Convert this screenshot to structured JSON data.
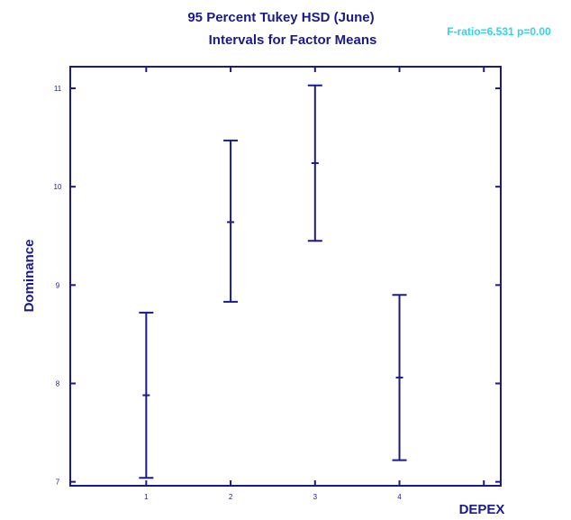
{
  "chart_data": {
    "type": "error-bar",
    "title": "95 Percent Tukey HSD (June)",
    "subtitle": "Intervals for Factor Means",
    "stat_text": "F-ratio=6.531 p=0.00",
    "xlabel": "DEPEX",
    "ylabel": "Dominance",
    "categories": [
      "1",
      "2",
      "3",
      "4"
    ],
    "ytick_labels": [
      "7",
      "8",
      "9",
      "10",
      "11"
    ],
    "ylim": [
      6.96,
      11.22
    ],
    "xlim": [
      0.1,
      5.2
    ],
    "means": [
      7.88,
      9.64,
      10.24,
      8.06
    ],
    "lower": [
      7.04,
      8.83,
      9.45,
      7.22
    ],
    "upper": [
      8.72,
      10.47,
      11.03,
      8.9
    ],
    "grid": false,
    "colors": {
      "axis": "#1a1a8c",
      "stat_text": "#2ad6e8",
      "intervals": "#1a1a8c"
    }
  }
}
